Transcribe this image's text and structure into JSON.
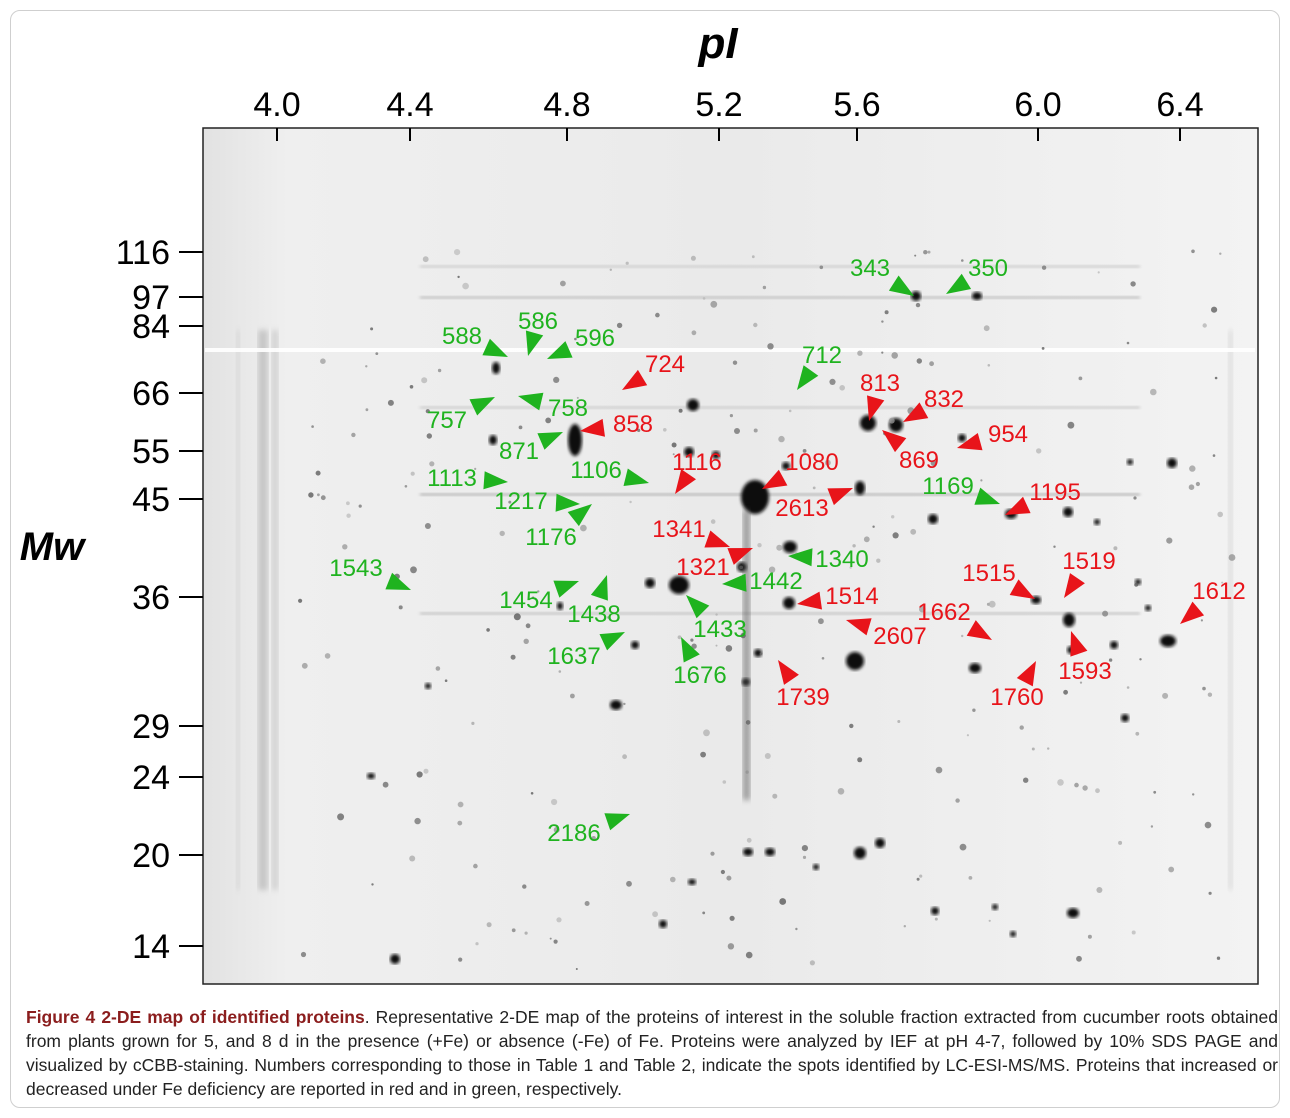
{
  "colors": {
    "increased": "#e8141a",
    "decreased": "#1fb31f",
    "caption_title": "#8b1d1d"
  },
  "axes": {
    "x_title": "pI",
    "y_title": "Mw",
    "x_ticks": [
      {
        "label": "4.0",
        "value": 4.0
      },
      {
        "label": "4.4",
        "value": 4.4
      },
      {
        "label": "4.8",
        "value": 4.8
      },
      {
        "label": "5.2",
        "value": 5.2
      },
      {
        "label": "5.6",
        "value": 5.6
      },
      {
        "label": "6.0",
        "value": 6.0
      },
      {
        "label": "6.4",
        "value": 6.4
      }
    ],
    "y_ticks": [
      {
        "label": "116",
        "value": 116
      },
      {
        "label": "97",
        "value": 97
      },
      {
        "label": "84",
        "value": 84
      },
      {
        "label": "66",
        "value": 66
      },
      {
        "label": "55",
        "value": 55
      },
      {
        "label": "45",
        "value": 45
      },
      {
        "label": "36",
        "value": 36
      },
      {
        "label": "29",
        "value": 29
      },
      {
        "label": "24",
        "value": 24
      },
      {
        "label": "20",
        "value": 20
      },
      {
        "label": "14",
        "value": 14
      }
    ]
  },
  "spots": [
    {
      "id": "343",
      "change": "decreased"
    },
    {
      "id": "350",
      "change": "decreased"
    },
    {
      "id": "588",
      "change": "decreased"
    },
    {
      "id": "586",
      "change": "decreased"
    },
    {
      "id": "596",
      "change": "decreased"
    },
    {
      "id": "724",
      "change": "increased"
    },
    {
      "id": "712",
      "change": "decreased"
    },
    {
      "id": "813",
      "change": "increased"
    },
    {
      "id": "832",
      "change": "increased"
    },
    {
      "id": "757",
      "change": "decreased"
    },
    {
      "id": "758",
      "change": "decreased"
    },
    {
      "id": "858",
      "change": "increased"
    },
    {
      "id": "871",
      "change": "decreased"
    },
    {
      "id": "954",
      "change": "increased"
    },
    {
      "id": "869",
      "change": "increased"
    },
    {
      "id": "1113",
      "change": "decreased"
    },
    {
      "id": "1106",
      "change": "decreased"
    },
    {
      "id": "1116",
      "change": "increased"
    },
    {
      "id": "1080",
      "change": "increased"
    },
    {
      "id": "1169",
      "change": "decreased"
    },
    {
      "id": "1195",
      "change": "increased"
    },
    {
      "id": "1217",
      "change": "decreased"
    },
    {
      "id": "2613",
      "change": "increased"
    },
    {
      "id": "1176",
      "change": "decreased"
    },
    {
      "id": "1341",
      "change": "increased"
    },
    {
      "id": "1340",
      "change": "decreased"
    },
    {
      "id": "1321",
      "change": "increased"
    },
    {
      "id": "1543",
      "change": "decreased"
    },
    {
      "id": "1442",
      "change": "decreased"
    },
    {
      "id": "1515",
      "change": "increased"
    },
    {
      "id": "1519",
      "change": "increased"
    },
    {
      "id": "1454",
      "change": "decreased"
    },
    {
      "id": "1438",
      "change": "decreased"
    },
    {
      "id": "1514",
      "change": "increased"
    },
    {
      "id": "1612",
      "change": "increased"
    },
    {
      "id": "1433",
      "change": "decreased"
    },
    {
      "id": "1662",
      "change": "increased"
    },
    {
      "id": "2607",
      "change": "increased"
    },
    {
      "id": "1637",
      "change": "decreased"
    },
    {
      "id": "1593",
      "change": "increased"
    },
    {
      "id": "1676",
      "change": "decreased"
    },
    {
      "id": "1739",
      "change": "increased"
    },
    {
      "id": "1760",
      "change": "increased"
    },
    {
      "id": "2186",
      "change": "decreased"
    }
  ],
  "caption": {
    "title": "Figure 4 2-DE map of identified proteins",
    "text": ". Representative 2-DE map of the proteins of interest in the soluble fraction extracted from cucumber roots obtained from plants grown for 5, and 8 d in the presence (+Fe) or absence (-Fe) of Fe. Proteins were analyzed by IEF at pH 4-7, followed by 10% SDS PAGE and visualized by cCBB-staining. Numbers corresponding to those in Table 1 and Table 2, indicate the spots identified by LC-ESI-MS/MS. Proteins that increased or decreased under Fe deficiency are reported in red and in green, respectively."
  }
}
